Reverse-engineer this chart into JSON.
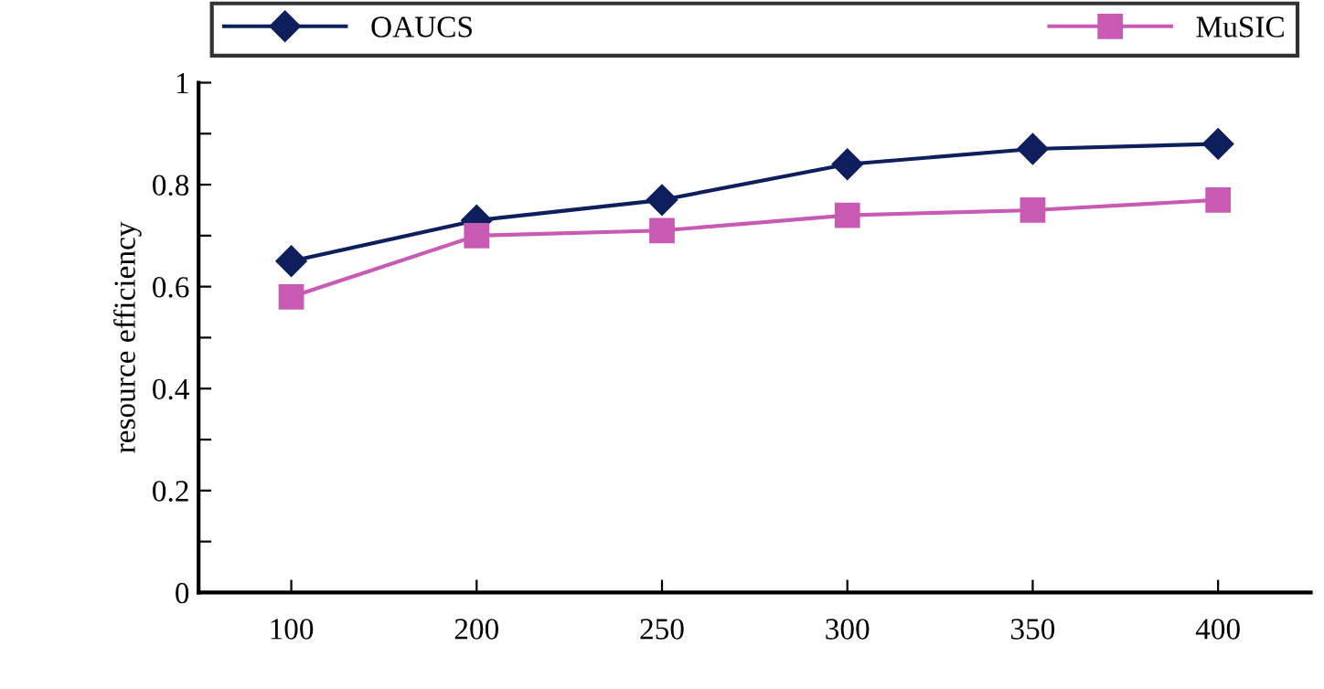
{
  "chart_data": {
    "type": "line",
    "ylabel": "resource efficiency",
    "categories": [
      "100",
      "200",
      "250",
      "300",
      "350",
      "400"
    ],
    "series": [
      {
        "name": "OAUCS",
        "color": "#0d1f5c",
        "marker": "diamond",
        "values": [
          0.65,
          0.73,
          0.77,
          0.84,
          0.87,
          0.88
        ]
      },
      {
        "name": "MuSIC",
        "color": "#c85ab4",
        "marker": "square",
        "values": [
          0.58,
          0.7,
          0.71,
          0.74,
          0.75,
          0.77
        ]
      }
    ],
    "ylim": [
      0,
      1
    ],
    "yticks": [
      0,
      {
        "value": 0.1,
        "label": null
      },
      0.2,
      {
        "value": 0.3,
        "label": null
      },
      0.4,
      {
        "value": 0.5,
        "label": null
      },
      0.6,
      {
        "value": 0.7,
        "label": null
      },
      0.8,
      {
        "value": 0.9,
        "label": null
      },
      1
    ],
    "grid": false,
    "legend": "top",
    "line_style": "solid"
  }
}
